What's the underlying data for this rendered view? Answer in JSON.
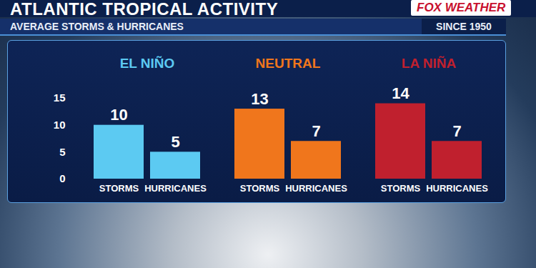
{
  "chart_data": {
    "type": "bar",
    "title": "ATLANTIC TROPICAL ACTIVITY",
    "subtitle": "AVERAGE STORMS & HURRICANES",
    "annotations": [
      "SINCE 1950",
      "FOX WEATHER"
    ],
    "categories": [
      "STORMS",
      "HURRICANES"
    ],
    "series": [
      {
        "name": "EL NIÑO",
        "color": "#5ccaf2",
        "values": [
          10,
          5
        ]
      },
      {
        "name": "NEUTRAL",
        "color": "#f0761c",
        "values": [
          13,
          7
        ]
      },
      {
        "name": "LA NIÑA",
        "color": "#c0202e",
        "values": [
          14,
          7
        ]
      }
    ],
    "ylim": [
      0,
      15
    ],
    "yticks": [
      0,
      5,
      10,
      15
    ],
    "grid": false,
    "data_labels": true
  }
}
